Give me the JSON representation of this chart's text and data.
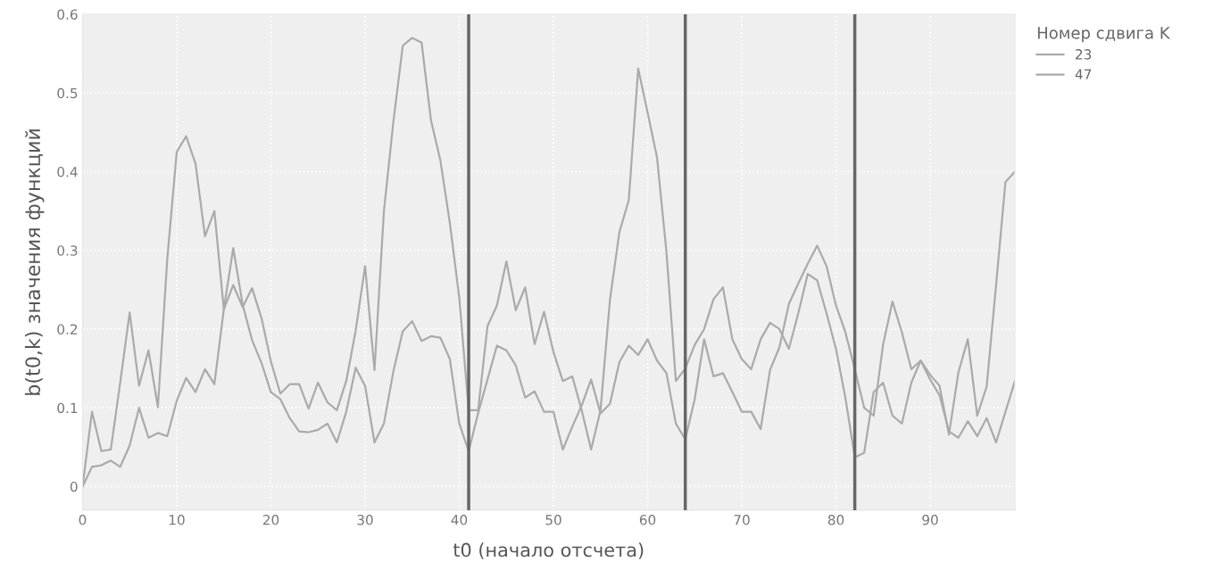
{
  "chart_data": {
    "type": "line",
    "xlabel": "t0 (начало отсчета)",
    "ylabel": "b(t0,k) значения функций",
    "legend_title": "Номер сдвига K",
    "x": [
      0,
      1,
      2,
      3,
      4,
      5,
      6,
      7,
      8,
      9,
      10,
      11,
      12,
      13,
      14,
      15,
      16,
      17,
      18,
      19,
      20,
      21,
      22,
      23,
      24,
      25,
      26,
      27,
      28,
      29,
      30,
      31,
      32,
      33,
      34,
      35,
      36,
      37,
      38,
      39,
      40,
      41,
      42,
      43,
      44,
      45,
      46,
      47,
      48,
      49,
      50,
      51,
      52,
      53,
      54,
      55,
      56,
      57,
      58,
      59,
      60,
      61,
      62,
      63,
      64,
      65,
      66,
      67,
      68,
      69,
      70,
      71,
      72,
      73,
      74,
      75,
      76,
      77,
      78,
      79,
      80,
      81,
      82,
      83,
      84,
      85,
      86,
      87,
      88,
      89,
      90,
      91,
      92,
      93,
      94,
      95,
      96,
      97,
      98,
      99
    ],
    "series": [
      {
        "name": "23",
        "color": "#aaaaaa",
        "values": [
          0,
          0.095,
          0.045,
          0.047,
          0.132,
          0.221,
          0.128,
          0.173,
          0.101,
          0.29,
          0.425,
          0.445,
          0.41,
          0.318,
          0.35,
          0.225,
          0.256,
          0.228,
          0.252,
          0.214,
          0.159,
          0.118,
          0.13,
          0.13,
          0.099,
          0.132,
          0.107,
          0.097,
          0.134,
          0.198,
          0.28,
          0.148,
          0.35,
          0.463,
          0.56,
          0.57,
          0.564,
          0.465,
          0.414,
          0.335,
          0.24,
          0.097,
          0.097,
          0.204,
          0.23,
          0.286,
          0.224,
          0.253,
          0.181,
          0.222,
          0.171,
          0.134,
          0.14,
          0.097,
          0.047,
          0.097,
          0.237,
          0.323,
          0.364,
          0.531,
          0.475,
          0.418,
          0.298,
          0.134,
          0.15,
          0.18,
          0.2,
          0.238,
          0.253,
          0.187,
          0.162,
          0.149,
          0.187,
          0.208,
          0.2,
          0.175,
          0.22,
          0.27,
          0.262,
          0.22,
          0.175,
          0.113,
          0.037,
          0.043,
          0.12,
          0.132,
          0.09,
          0.08,
          0.132,
          0.16,
          0.136,
          0.116,
          0.07,
          0.062,
          0.083,
          0.064,
          0.087,
          0.056,
          0.095,
          0.134
        ]
      },
      {
        "name": "47",
        "color": "#aaaaaa",
        "values": [
          0,
          0.025,
          0.027,
          0.033,
          0.025,
          0.052,
          0.1,
          0.062,
          0.068,
          0.064,
          0.109,
          0.138,
          0.12,
          0.149,
          0.13,
          0.225,
          0.303,
          0.231,
          0.186,
          0.157,
          0.12,
          0.111,
          0.087,
          0.07,
          0.069,
          0.072,
          0.08,
          0.056,
          0.095,
          0.151,
          0.128,
          0.056,
          0.08,
          0.146,
          0.197,
          0.21,
          0.185,
          0.191,
          0.189,
          0.162,
          0.08,
          0.045,
          0.093,
          0.136,
          0.179,
          0.173,
          0.154,
          0.113,
          0.121,
          0.095,
          0.095,
          0.047,
          0.076,
          0.103,
          0.136,
          0.093,
          0.105,
          0.158,
          0.179,
          0.167,
          0.187,
          0.16,
          0.144,
          0.08,
          0.06,
          0.111,
          0.187,
          0.14,
          0.144,
          0.12,
          0.095,
          0.095,
          0.073,
          0.148,
          0.177,
          0.232,
          0.258,
          0.283,
          0.306,
          0.28,
          0.23,
          0.196,
          0.149,
          0.1,
          0.09,
          0.18,
          0.235,
          0.196,
          0.149,
          0.16,
          0.142,
          0.128,
          0.066,
          0.145,
          0.187,
          0.09,
          0.127,
          0.256,
          0.387,
          0.4
        ]
      }
    ],
    "xlim": [
      0,
      99
    ],
    "xticks": [
      0,
      10,
      20,
      30,
      40,
      50,
      60,
      70,
      80,
      90
    ],
    "ylim": [
      -0.03,
      0.6
    ],
    "yticks": [
      0,
      0.1,
      0.2,
      0.3,
      0.4,
      0.5,
      0.6
    ],
    "ref_lines": [
      {
        "axis": "x",
        "value": 41,
        "color": "#666666"
      },
      {
        "axis": "x",
        "value": 64,
        "color": "#666666"
      },
      {
        "axis": "x",
        "value": 82,
        "color": "#666666"
      }
    ],
    "grid": true,
    "legend": "top right",
    "marker": "none",
    "line_style": "solid"
  }
}
